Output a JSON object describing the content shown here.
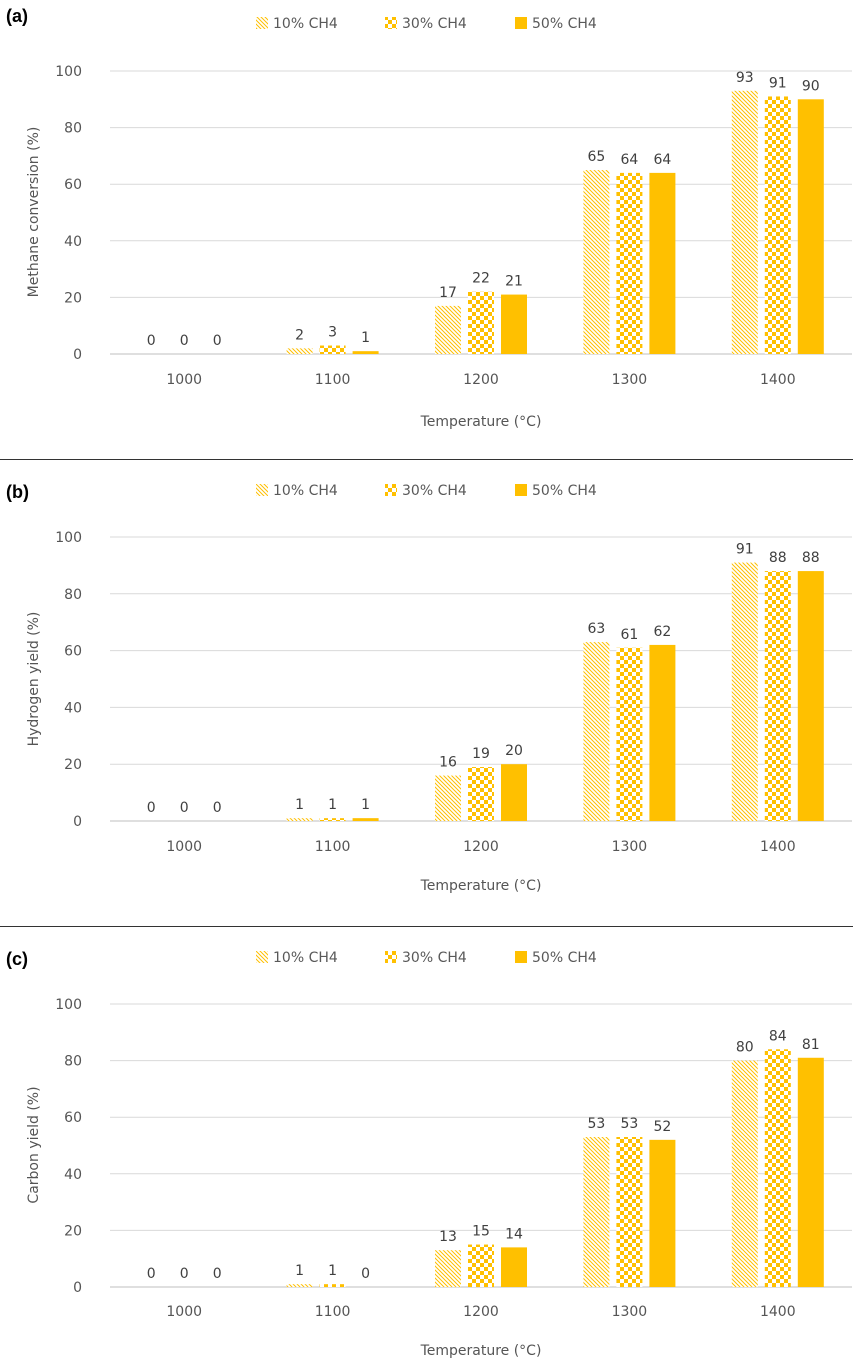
{
  "colors": {
    "accent": "#FFC000",
    "grid": "#D9D9D9",
    "axis": "#BFBFBF",
    "text": "#595959"
  },
  "chart_data": [
    {
      "panel_label": "(a)",
      "type": "bar",
      "categories": [
        "1000",
        "1100",
        "1200",
        "1300",
        "1400"
      ],
      "series": [
        {
          "name": "10% CH4",
          "values": [
            0,
            2,
            17,
            65,
            93
          ],
          "pattern": "diagonal-hatch"
        },
        {
          "name": "30% CH4",
          "values": [
            0,
            3,
            22,
            64,
            91
          ],
          "pattern": "checker"
        },
        {
          "name": "50% CH4",
          "values": [
            0,
            1,
            21,
            64,
            90
          ],
          "pattern": "solid"
        }
      ],
      "xlabel": "Temperature (°C)",
      "ylabel": "Methane conversion (%)",
      "ylim": [
        0,
        100
      ],
      "yticks": [
        "0",
        "20",
        "40",
        "60",
        "80",
        "100"
      ],
      "grid": true,
      "legend": "top-center"
    },
    {
      "panel_label": "(b)",
      "type": "bar",
      "categories": [
        "1000",
        "1100",
        "1200",
        "1300",
        "1400"
      ],
      "series": [
        {
          "name": "10% CH4",
          "values": [
            0,
            1,
            16,
            63,
            91
          ],
          "pattern": "diagonal-hatch"
        },
        {
          "name": "30% CH4",
          "values": [
            0,
            1,
            19,
            61,
            88
          ],
          "pattern": "checker"
        },
        {
          "name": "50% CH4",
          "values": [
            0,
            1,
            20,
            62,
            88
          ],
          "pattern": "solid"
        }
      ],
      "xlabel": "Temperature (°C)",
      "ylabel": "Hydrogen yield (%)",
      "ylim": [
        0,
        100
      ],
      "yticks": [
        "0",
        "20",
        "40",
        "60",
        "80",
        "100"
      ],
      "grid": true,
      "legend": "top-center"
    },
    {
      "panel_label": "(c)",
      "type": "bar",
      "categories": [
        "1000",
        "1100",
        "1200",
        "1300",
        "1400"
      ],
      "series": [
        {
          "name": "10% CH4",
          "values": [
            0,
            1,
            13,
            53,
            80
          ],
          "pattern": "diagonal-hatch"
        },
        {
          "name": "30% CH4",
          "values": [
            0,
            1,
            15,
            53,
            84
          ],
          "pattern": "checker"
        },
        {
          "name": "50% CH4",
          "values": [
            0,
            0,
            14,
            52,
            81
          ],
          "pattern": "solid"
        }
      ],
      "xlabel": "Temperature (°C)",
      "ylabel": "Carbon yield (%)",
      "ylim": [
        0,
        100
      ],
      "yticks": [
        "0",
        "20",
        "40",
        "60",
        "80",
        "100"
      ],
      "grid": true,
      "legend": "top-center"
    }
  ]
}
